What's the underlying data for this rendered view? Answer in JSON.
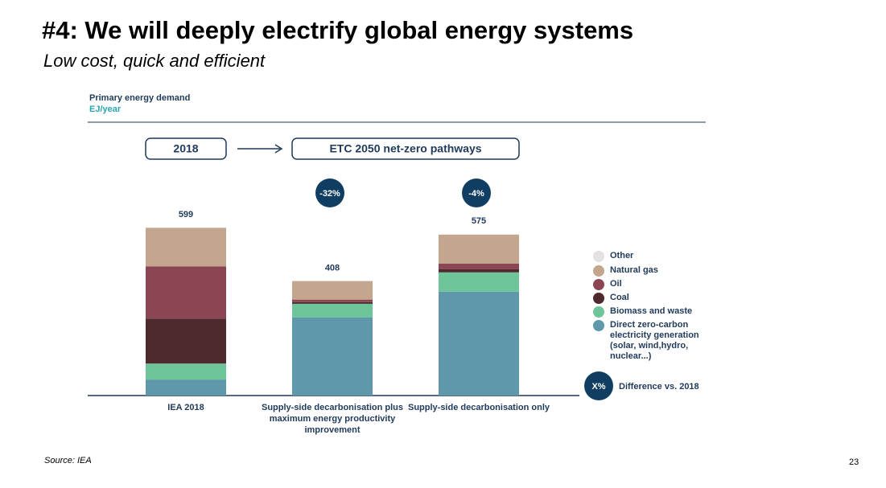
{
  "slide": {
    "title": "#4: We will deeply electrify global energy systems",
    "subtitle": "Low cost, quick and efficient",
    "source": "Source: IEA",
    "page_number": "23"
  },
  "chart_data": {
    "type": "stacked_bar",
    "title": "Primary energy demand",
    "y_label": "EJ/year",
    "header": [
      "2018",
      "ETC 2050 net-zero pathways"
    ],
    "categories": [
      "IEA 2018",
      "Supply-side decarbonisation plus maximum energy productivity improvement",
      "Supply-side decarbonisation only"
    ],
    "totals": [
      599,
      408,
      575
    ],
    "difference_labels": [
      null,
      "-32%",
      "-4%"
    ],
    "difference_legend": {
      "symbol": "X%",
      "label": "Difference vs. 2018"
    },
    "series": [
      {
        "name": "Other",
        "color": "#e4e1e3",
        "values": [
          1,
          0,
          2
        ]
      },
      {
        "name": "Natural gas",
        "color": "#c4a58d",
        "values": [
          138,
          66,
          103
        ]
      },
      {
        "name": "Oil",
        "color": "#8c4653",
        "values": [
          186,
          9,
          20
        ]
      },
      {
        "name": "Coal",
        "color": "#4e2a2e",
        "values": [
          160,
          6,
          11
        ]
      },
      {
        "name": "Biomass and waste",
        "color": "#6fc59a",
        "values": [
          57,
          49,
          69
        ]
      },
      {
        "name": "Direct zero-carbon electricity generation (solar, wind,hydro, nuclear...)",
        "color": "#5f97ab",
        "values": [
          57,
          278,
          370
        ]
      }
    ]
  }
}
